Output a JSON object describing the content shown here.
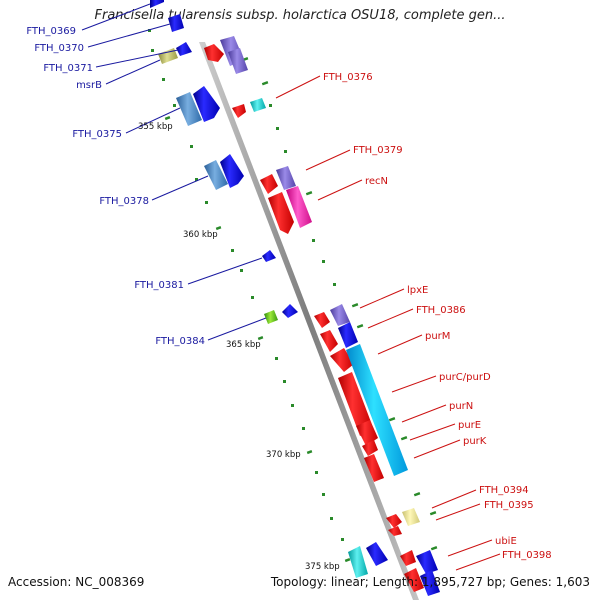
{
  "title": "Francisella tularensis subsp. holarctica OSU18, complete gen...",
  "accession": "Accession: NC_008369",
  "topology": "Topology: linear; Length: 1,895,727 bp; Genes: 1,603",
  "scale_labels": [
    "355 kbp",
    "360 kbp",
    "365 kbp",
    "370 kbp",
    "375 kbp"
  ],
  "left_genes": [
    "FTH_0369",
    "FTH_0370",
    "FTH_0371",
    "msrB",
    "FTH_0375",
    "FTH_0378",
    "FTH_0381",
    "FTH_0384"
  ],
  "right_genes": [
    "FTH_0376",
    "FTH_0379",
    "recN",
    "lpxE",
    "FTH_0386",
    "purM",
    "purC/purD",
    "purN",
    "purE",
    "purK",
    "FTH_0394",
    "FTH_0395",
    "ubiE",
    "FTH_0398"
  ],
  "colors": {
    "label_left": "#1a1aa0",
    "label_right": "#cc1111",
    "backbone": "#9a9a9a",
    "tick": "#2a8a2a"
  }
}
